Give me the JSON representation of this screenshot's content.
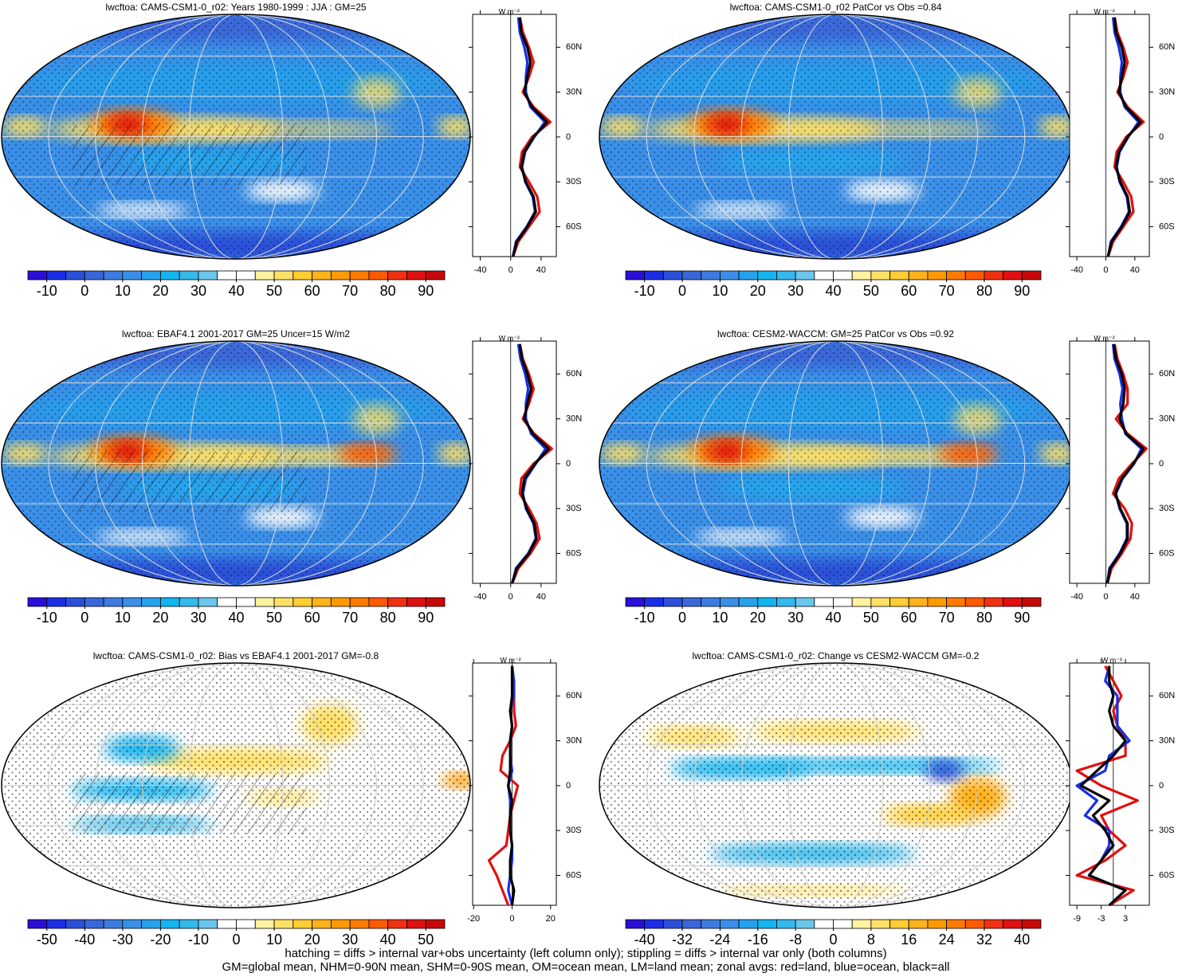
{
  "chart_data": [
    {
      "type": "map",
      "title": "lwcftoa: CAMS-CSM1-0_r02: Years 1980-1999 : JJA : GM=25",
      "colorbar": {
        "xlim": [
          -15,
          95
        ],
        "xticks": [
          -10,
          0,
          10,
          20,
          30,
          40,
          50,
          60,
          70,
          80,
          90
        ],
        "colors": [
          "#2a0fd8",
          "#1a2ee8",
          "#2b4fd8",
          "#3a66d8",
          "#3d7be0",
          "#3a8fe8",
          "#24a3ec",
          "#12b5f0",
          "#33b9ec",
          "#6ac6ec",
          "#ffffff",
          "#ffffff",
          "#fff2a0",
          "#ffe066",
          "#ffcc33",
          "#ffb21a",
          "#ff9a00",
          "#ff7a00",
          "#ff5a00",
          "#f03010",
          "#e01010",
          "#c80808"
        ]
      },
      "zonal": {
        "type": "line",
        "xlabel": "W m⁻²",
        "xlim": [
          -50,
          60
        ],
        "xticks": [
          -40,
          0,
          40
        ],
        "ylim": [
          -80,
          82
        ],
        "yticks": [
          {
            "value": 60,
            "label": "60N"
          },
          {
            "value": 30,
            "label": "30N"
          },
          0,
          {
            "value": -30,
            "label": "30S"
          },
          {
            "value": -60,
            "label": "60S"
          }
        ],
        "y": [
          -80,
          -70,
          -60,
          -50,
          -40,
          -30,
          -20,
          -10,
          0,
          10,
          20,
          30,
          40,
          50,
          60,
          70,
          80
        ],
        "series": [
          {
            "color": "#e01010",
            "values": [
              3,
              10,
              24,
              38,
              35,
              24,
              12,
              15,
              28,
              52,
              30,
              16,
              24,
              30,
              24,
              16,
              12
            ]
          },
          {
            "color": "#1a2ee8",
            "values": [
              3,
              7,
              21,
              32,
              29,
              19,
              15,
              19,
              31,
              45,
              26,
              20,
              20,
              22,
              18,
              12,
              10
            ]
          },
          {
            "color": "#000000",
            "values": [
              3,
              8,
              22,
              33,
              30,
              20,
              14,
              18,
              30,
              48,
              28,
              18,
              22,
              26,
              22,
              14,
              12
            ]
          }
        ]
      }
    },
    {
      "type": "map",
      "title": "lwcftoa: CAMS-CSM1-0_r02 PatCor vs Obs =0.84",
      "colorbar": {
        "xlim": [
          -15,
          95
        ],
        "xticks": [
          -10,
          0,
          10,
          20,
          30,
          40,
          50,
          60,
          70,
          80,
          90
        ],
        "colors": [
          "#2a0fd8",
          "#1a2ee8",
          "#2b4fd8",
          "#3a66d8",
          "#3d7be0",
          "#3a8fe8",
          "#24a3ec",
          "#12b5f0",
          "#33b9ec",
          "#6ac6ec",
          "#ffffff",
          "#ffffff",
          "#fff2a0",
          "#ffe066",
          "#ffcc33",
          "#ffb21a",
          "#ff9a00",
          "#ff7a00",
          "#ff5a00",
          "#f03010",
          "#e01010",
          "#c80808"
        ]
      },
      "zonal": {
        "type": "line",
        "xlabel": "W m⁻²",
        "xlim": [
          -50,
          60
        ],
        "xticks": [
          -40,
          0,
          40
        ],
        "ylim": [
          -80,
          82
        ],
        "yticks": [
          {
            "value": 60,
            "label": "60N"
          },
          {
            "value": 30,
            "label": "30N"
          },
          0,
          {
            "value": -30,
            "label": "30S"
          },
          {
            "value": -60,
            "label": "60S"
          }
        ],
        "y": [
          -80,
          -70,
          -60,
          -50,
          -40,
          -30,
          -20,
          -10,
          0,
          10,
          20,
          30,
          40,
          50,
          60,
          70,
          80
        ],
        "series": [
          {
            "color": "#e01010",
            "values": [
              3,
              10,
              24,
              38,
              35,
              24,
              12,
              15,
              28,
              52,
              30,
              16,
              24,
              30,
              24,
              16,
              12
            ]
          },
          {
            "color": "#1a2ee8",
            "values": [
              3,
              7,
              21,
              32,
              29,
              19,
              15,
              19,
              31,
              45,
              26,
              20,
              20,
              22,
              18,
              12,
              10
            ]
          },
          {
            "color": "#000000",
            "values": [
              3,
              8,
              22,
              33,
              30,
              20,
              14,
              18,
              30,
              48,
              28,
              18,
              22,
              26,
              22,
              14,
              12
            ]
          }
        ]
      }
    },
    {
      "type": "map",
      "title": "lwcftoa: EBAF4.1 2001-2017 GM=25 Uncer=15 W/m2",
      "colorbar": {
        "xlim": [
          -15,
          95
        ],
        "xticks": [
          -10,
          0,
          10,
          20,
          30,
          40,
          50,
          60,
          70,
          80,
          90
        ],
        "colors": [
          "#2a0fd8",
          "#1a2ee8",
          "#2b4fd8",
          "#3a66d8",
          "#3d7be0",
          "#3a8fe8",
          "#24a3ec",
          "#12b5f0",
          "#33b9ec",
          "#6ac6ec",
          "#ffffff",
          "#ffffff",
          "#fff2a0",
          "#ffe066",
          "#ffcc33",
          "#ffb21a",
          "#ff9a00",
          "#ff7a00",
          "#ff5a00",
          "#f03010",
          "#e01010",
          "#c80808"
        ]
      },
      "zonal": {
        "type": "line",
        "xlabel": "W m⁻²",
        "xlim": [
          -50,
          60
        ],
        "xticks": [
          -40,
          0,
          40
        ],
        "ylim": [
          -80,
          82
        ],
        "yticks": [
          {
            "value": 60,
            "label": "60N"
          },
          {
            "value": 30,
            "label": "30N"
          },
          0,
          {
            "value": -30,
            "label": "30S"
          },
          {
            "value": -60,
            "label": "60S"
          }
        ],
        "y": [
          -80,
          -70,
          -60,
          -50,
          -40,
          -30,
          -20,
          -10,
          0,
          10,
          20,
          30,
          40,
          50,
          60,
          70,
          80
        ],
        "series": [
          {
            "color": "#e01010",
            "values": [
              2,
              10,
              26,
              38,
              34,
              24,
              12,
              14,
              30,
              54,
              31,
              16,
              24,
              30,
              24,
              16,
              12
            ]
          },
          {
            "color": "#1a2ee8",
            "values": [
              2,
              7,
              23,
              33,
              30,
              20,
              16,
              20,
              33,
              46,
              27,
              20,
              20,
              23,
              19,
              13,
              10
            ]
          },
          {
            "color": "#000000",
            "values": [
              2,
              8,
              24,
              34,
              31,
              21,
              15,
              18,
              32,
              50,
              29,
              18,
              22,
              27,
              22,
              15,
              12
            ]
          }
        ]
      }
    },
    {
      "type": "map",
      "title": "lwcftoa: CESM2-WACCM: GM=25 PatCor vs Obs =0.92",
      "colorbar": {
        "xlim": [
          -15,
          95
        ],
        "xticks": [
          -10,
          0,
          10,
          20,
          30,
          40,
          50,
          60,
          70,
          80,
          90
        ],
        "colors": [
          "#2a0fd8",
          "#1a2ee8",
          "#2b4fd8",
          "#3a66d8",
          "#3d7be0",
          "#3a8fe8",
          "#24a3ec",
          "#12b5f0",
          "#33b9ec",
          "#6ac6ec",
          "#ffffff",
          "#ffffff",
          "#fff2a0",
          "#ffe066",
          "#ffcc33",
          "#ffb21a",
          "#ff9a00",
          "#ff7a00",
          "#ff5a00",
          "#f03010",
          "#e01010",
          "#c80808"
        ]
      },
      "zonal": {
        "type": "line",
        "xlabel": "W m⁻²",
        "xlim": [
          -50,
          60
        ],
        "xticks": [
          -40,
          0,
          40
        ],
        "ylim": [
          -80,
          82
        ],
        "yticks": [
          {
            "value": 60,
            "label": "60N"
          },
          {
            "value": 30,
            "label": "30N"
          },
          0,
          {
            "value": -30,
            "label": "30S"
          },
          {
            "value": -60,
            "label": "60S"
          }
        ],
        "y": [
          -80,
          -70,
          -60,
          -50,
          -40,
          -30,
          -20,
          -10,
          0,
          10,
          20,
          30,
          40,
          50,
          60,
          70,
          80
        ],
        "series": [
          {
            "color": "#e01010",
            "values": [
              2,
              8,
              22,
              34,
              36,
              26,
              10,
              18,
              36,
              56,
              30,
              14,
              30,
              30,
              24,
              16,
              12
            ]
          },
          {
            "color": "#1a2ee8",
            "values": [
              2,
              5,
              19,
              29,
              29,
              19,
              14,
              23,
              39,
              49,
              27,
              22,
              20,
              23,
              19,
              12,
              10
            ]
          },
          {
            "color": "#000000",
            "values": [
              2,
              6,
              20,
              30,
              30,
              20,
              13,
              22,
              38,
              52,
              28,
              19,
              24,
              26,
              22,
              14,
              11
            ]
          }
        ]
      }
    },
    {
      "type": "map",
      "title": "lwcftoa: CAMS-CSM1-0_r02: Bias vs EBAF4.1 2001-2017 GM=-0.8",
      "colorbar": {
        "xlim": [
          -55,
          55
        ],
        "xticks": [
          -50,
          -40,
          -30,
          -20,
          -10,
          0,
          10,
          20,
          30,
          40,
          50
        ],
        "colors": [
          "#2a0fd8",
          "#1a2ee8",
          "#2b4fd8",
          "#3a66d8",
          "#3d7be0",
          "#3a8fe8",
          "#24a3ec",
          "#12b5f0",
          "#33b9ec",
          "#6ac6ec",
          "#ffffff",
          "#ffffff",
          "#fff2a0",
          "#ffe066",
          "#ffcc33",
          "#ffb21a",
          "#ff9a00",
          "#ff7a00",
          "#ff5a00",
          "#f03010",
          "#e01010",
          "#c80808"
        ]
      },
      "zonal": {
        "type": "line",
        "xlabel": "W m⁻²",
        "xlim": [
          -20.5,
          23
        ],
        "xticks": [
          -20,
          0,
          20
        ],
        "ylim": [
          -80,
          82
        ],
        "yticks": [
          {
            "value": 60,
            "label": "60N"
          },
          {
            "value": 30,
            "label": "30N"
          },
          0,
          {
            "value": -30,
            "label": "30S"
          },
          {
            "value": -60,
            "label": "60S"
          }
        ],
        "y": [
          -80,
          -70,
          -60,
          -50,
          -40,
          -30,
          -20,
          -10,
          0,
          10,
          20,
          30,
          40,
          50,
          60,
          70,
          80
        ],
        "series": [
          {
            "color": "#e01010",
            "values": [
              -2,
              -5,
              -8,
              -12,
              -3,
              -2,
              -1,
              1,
              3,
              -6,
              -5,
              -1,
              2,
              1,
              1,
              0,
              0
            ]
          },
          {
            "color": "#1a2ee8",
            "values": [
              0,
              -2,
              -1,
              0,
              0,
              -1,
              -1,
              -1,
              -2,
              0,
              -1,
              -1,
              0,
              -1,
              1,
              1,
              0
            ]
          },
          {
            "color": "#000000",
            "values": [
              0,
              1,
              -1,
              -1,
              0,
              -1,
              -1,
              0,
              -2,
              -1,
              -1,
              -1,
              0,
              -1,
              0,
              0,
              0
            ]
          }
        ]
      }
    },
    {
      "type": "map",
      "title": "lwcftoa: CAMS-CSM1-0_r02: Change vs CESM2-WACCM GM=-0.2",
      "colorbar": {
        "xlim": [
          -44,
          44
        ],
        "xticks": [
          -40,
          -32,
          -24,
          -16,
          -8,
          0,
          8,
          16,
          24,
          32,
          40
        ],
        "colors": [
          "#2a0fd8",
          "#1a2ee8",
          "#2b4fd8",
          "#3a66d8",
          "#3d7be0",
          "#3a8fe8",
          "#24a3ec",
          "#12b5f0",
          "#33b9ec",
          "#6ac6ec",
          "#ffffff",
          "#ffffff",
          "#fff2a0",
          "#ffe066",
          "#ffcc33",
          "#ffb21a",
          "#ff9a00",
          "#ff7a00",
          "#ff5a00",
          "#f03010",
          "#e01010",
          "#c80808"
        ]
      },
      "zonal": {
        "type": "line",
        "xlabel": "W m⁻²",
        "xlim": [
          -10.8,
          8.9
        ],
        "xticks": [
          -9,
          -3,
          3
        ],
        "ylim": [
          -80,
          82
        ],
        "yticks": [
          {
            "value": 60,
            "label": "60N"
          },
          {
            "value": 30,
            "label": "30N"
          },
          0,
          {
            "value": -30,
            "label": "30S"
          },
          {
            "value": -60,
            "label": "60S"
          }
        ],
        "y": [
          -80,
          -70,
          -60,
          -50,
          -40,
          -30,
          -20,
          -10,
          0,
          10,
          20,
          30,
          40,
          50,
          60,
          70,
          80
        ],
        "series": [
          {
            "color": "#e01010",
            "values": [
              -1,
              5,
              -9,
              -2,
              3,
              -1,
              -3,
              6,
              -3,
              -9,
              3,
              3,
              1,
              0,
              2,
              0,
              -2
            ]
          },
          {
            "color": "#1a2ee8",
            "values": [
              -1,
              3,
              -6,
              -3,
              -1,
              -1,
              -7,
              -4,
              -9,
              -2,
              -1,
              4,
              1,
              1,
              1,
              -2,
              -1
            ]
          },
          {
            "color": "#000000",
            "values": [
              -1,
              3,
              -6,
              -3,
              0,
              -2,
              -5,
              -1,
              -8,
              -4,
              0,
              3,
              0,
              -1,
              0,
              -1,
              -1
            ]
          }
        ]
      }
    }
  ],
  "notes": [
    "hatching = diffs > internal var+obs uncertainty (left column only); stippling = diffs > internal var only (both columns)",
    "GM=global mean, NHM=0-90N mean, SHM=0-90S mean, OM=ocean mean, LM=land mean; zonal avgs: red=land, blue=ocean, black=all"
  ]
}
